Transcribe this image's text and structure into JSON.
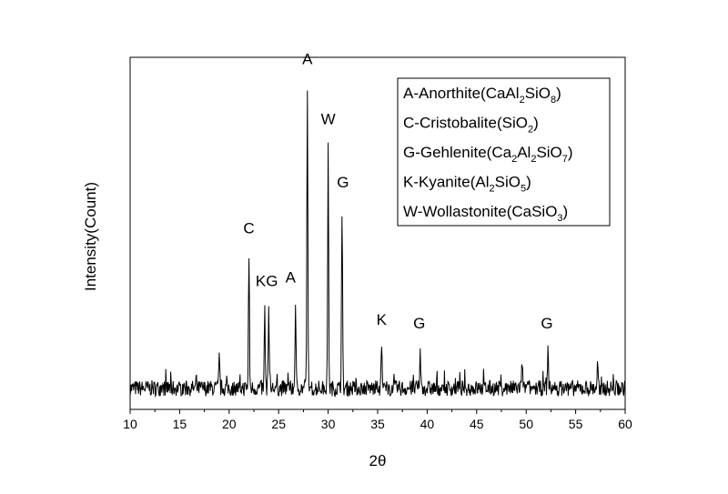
{
  "chart_data": {
    "type": "line",
    "xlabel": "2θ",
    "ylabel": "Intensity(Count)",
    "xlim": [
      10,
      60
    ],
    "ylim": [
      0,
      100
    ],
    "x_ticks": [
      10,
      15,
      20,
      25,
      30,
      35,
      40,
      45,
      50,
      55,
      60
    ],
    "y_ticks_shown": false,
    "grid": false,
    "series": [
      {
        "baseline": 6,
        "peaks": [
          {
            "x": 19.0,
            "y": 14.5
          },
          {
            "x": 22.0,
            "y": 44
          },
          {
            "x": 23.6,
            "y": 28
          },
          {
            "x": 24.0,
            "y": 29
          },
          {
            "x": 26.7,
            "y": 30
          },
          {
            "x": 27.9,
            "y": 92
          },
          {
            "x": 30.0,
            "y": 75
          },
          {
            "x": 31.4,
            "y": 57
          },
          {
            "x": 35.4,
            "y": 18.5
          },
          {
            "x": 39.3,
            "y": 16.5
          },
          {
            "x": 49.6,
            "y": 14
          },
          {
            "x": 52.2,
            "y": 17.5
          },
          {
            "x": 57.2,
            "y": 12
          }
        ]
      }
    ],
    "peak_labels": [
      {
        "text": "C",
        "x": 22.0,
        "y": 50
      },
      {
        "text": "KG",
        "x": 23.8,
        "y": 35
      },
      {
        "text": "A",
        "x": 26.2,
        "y": 36
      },
      {
        "text": "A",
        "x": 27.9,
        "y": 98
      },
      {
        "text": "W",
        "x": 30.0,
        "y": 81
      },
      {
        "text": "G",
        "x": 31.5,
        "y": 63
      },
      {
        "text": "K",
        "x": 35.4,
        "y": 24
      },
      {
        "text": "G",
        "x": 39.2,
        "y": 23
      },
      {
        "text": "G",
        "x": 52.1,
        "y": 23
      }
    ],
    "legend": {
      "placement": "top-right",
      "entries": [
        {
          "parts": [
            {
              "t": "A-Anorthite(CaAl"
            },
            {
              "t": "2",
              "sub": true
            },
            {
              "t": "SiO"
            },
            {
              "t": "8",
              "sub": true
            },
            {
              "t": ")"
            }
          ]
        },
        {
          "parts": [
            {
              "t": "C-Cristobalite(SiO"
            },
            {
              "t": "2",
              "sub": true
            },
            {
              "t": ")"
            }
          ]
        },
        {
          "parts": [
            {
              "t": "G-Gehlenite(Ca"
            },
            {
              "t": "2",
              "sub": true
            },
            {
              "t": "Al"
            },
            {
              "t": "2",
              "sub": true
            },
            {
              "t": "SiO"
            },
            {
              "t": "7",
              "sub": true
            },
            {
              "t": ")"
            }
          ]
        },
        {
          "parts": [
            {
              "t": "K-Kyanite(Al"
            },
            {
              "t": "2",
              "sub": true
            },
            {
              "t": "SiO"
            },
            {
              "t": "5",
              "sub": true
            },
            {
              "t": ")"
            }
          ]
        },
        {
          "parts": [
            {
              "t": "W-Wollastonite(CaSiO"
            },
            {
              "t": "3",
              "sub": true
            },
            {
              "t": ")"
            }
          ]
        }
      ]
    }
  }
}
